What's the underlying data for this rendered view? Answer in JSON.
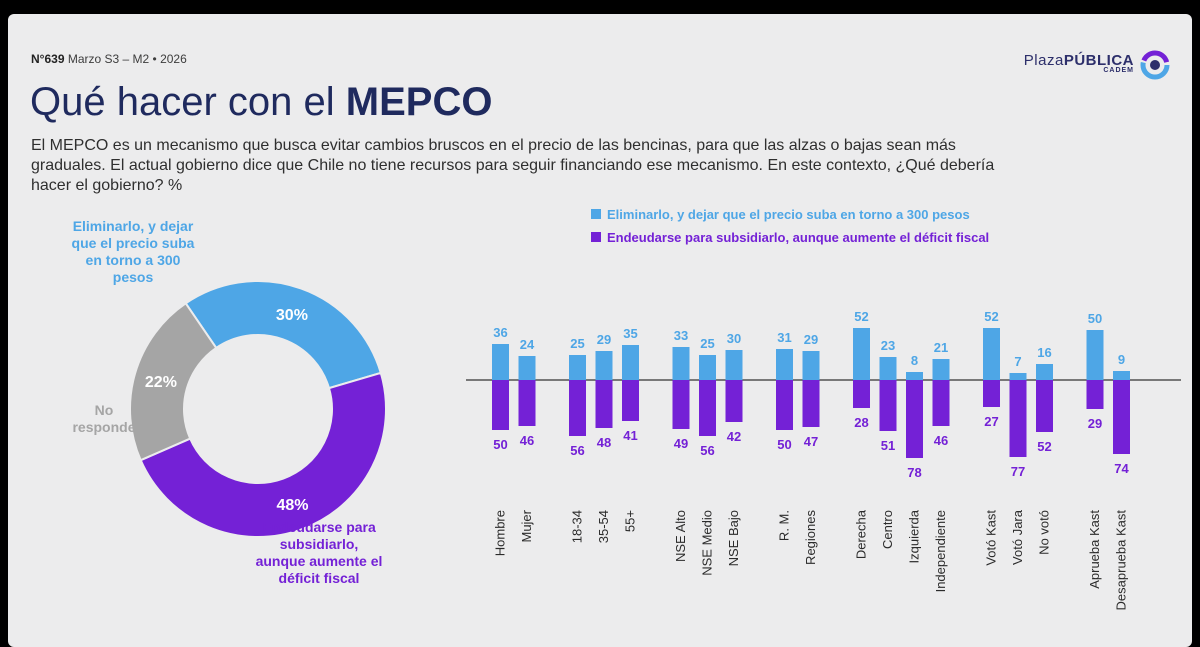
{
  "header": {
    "number": "N°639",
    "period": "Marzo S3 – M2 • 2026",
    "brand_light": "Plaza",
    "brand_bold": "PÚBLICA",
    "brand_sub": "CADEM"
  },
  "title": {
    "light": "Qué hacer con el",
    "bold": "MEPCO"
  },
  "question": "El MEPCO es un mecanismo que busca evitar cambios bruscos en el precio de las bencinas, para que las alzas o bajas sean más graduales. El actual gobierno dice que Chile no tiene recursos para seguir financiando ese mecanismo. En este contexto, ¿Qué debería hacer el gobierno? %",
  "colors": {
    "blue": "#4ea6e6",
    "purple": "#7421d6",
    "gray": "#a5a5a5",
    "blueText": "#4ea6e6",
    "purpleText": "#7421d6"
  },
  "chart_data": [
    {
      "type": "pie",
      "title": "¿Qué debería hacer el gobierno?",
      "slices": [
        {
          "label": "Eliminarlo, y dejar que el precio suba en torno a 300 pesos",
          "value": 30,
          "display": "30%"
        },
        {
          "label": "Endeudarse para subsidiarlo, aunque aumente el déficit fiscal",
          "value": 48,
          "display": "48%"
        },
        {
          "label": "No responde",
          "value": 22,
          "display": "22%"
        }
      ]
    },
    {
      "type": "bar",
      "legend": [
        "Eliminarlo, y dejar que el precio suba en torno a 300 pesos",
        "Endeudarse para subsidiarlo, aunque aumente el déficit fiscal"
      ],
      "groups": [
        [
          "Hombre",
          "Mujer"
        ],
        [
          "18-34",
          "35-54",
          "55+"
        ],
        [
          "NSE Alto",
          "NSE Medio",
          "NSE Bajo"
        ],
        [
          "R. M.",
          "Regiones"
        ],
        [
          "Derecha",
          "Centro",
          "Izquierda",
          "Independiente"
        ],
        [
          "Votó Kast",
          "Votó Jara",
          "No votó"
        ],
        [
          "Aprueba Kast",
          "Desaprueba Kast"
        ]
      ],
      "categories": [
        "Hombre",
        "Mujer",
        "18-34",
        "35-54",
        "55+",
        "NSE Alto",
        "NSE Medio",
        "NSE Bajo",
        "R. M.",
        "Regiones",
        "Derecha",
        "Centro",
        "Izquierda",
        "Independiente",
        "Votó Kast",
        "Votó Jara",
        "No votó",
        "Aprueba Kast",
        "Desaprueba Kast"
      ],
      "series": [
        {
          "name": "Eliminarlo, y dejar que el precio suba en torno a 300 pesos",
          "values": [
            36,
            24,
            25,
            29,
            35,
            33,
            25,
            30,
            31,
            29,
            52,
            23,
            8,
            21,
            52,
            7,
            16,
            50,
            9
          ]
        },
        {
          "name": "Endeudarse para subsidiarlo, aunque aumente el déficit fiscal",
          "values": [
            50,
            46,
            56,
            48,
            41,
            49,
            56,
            42,
            50,
            47,
            28,
            51,
            78,
            46,
            27,
            77,
            52,
            29,
            74
          ]
        }
      ]
    }
  ]
}
